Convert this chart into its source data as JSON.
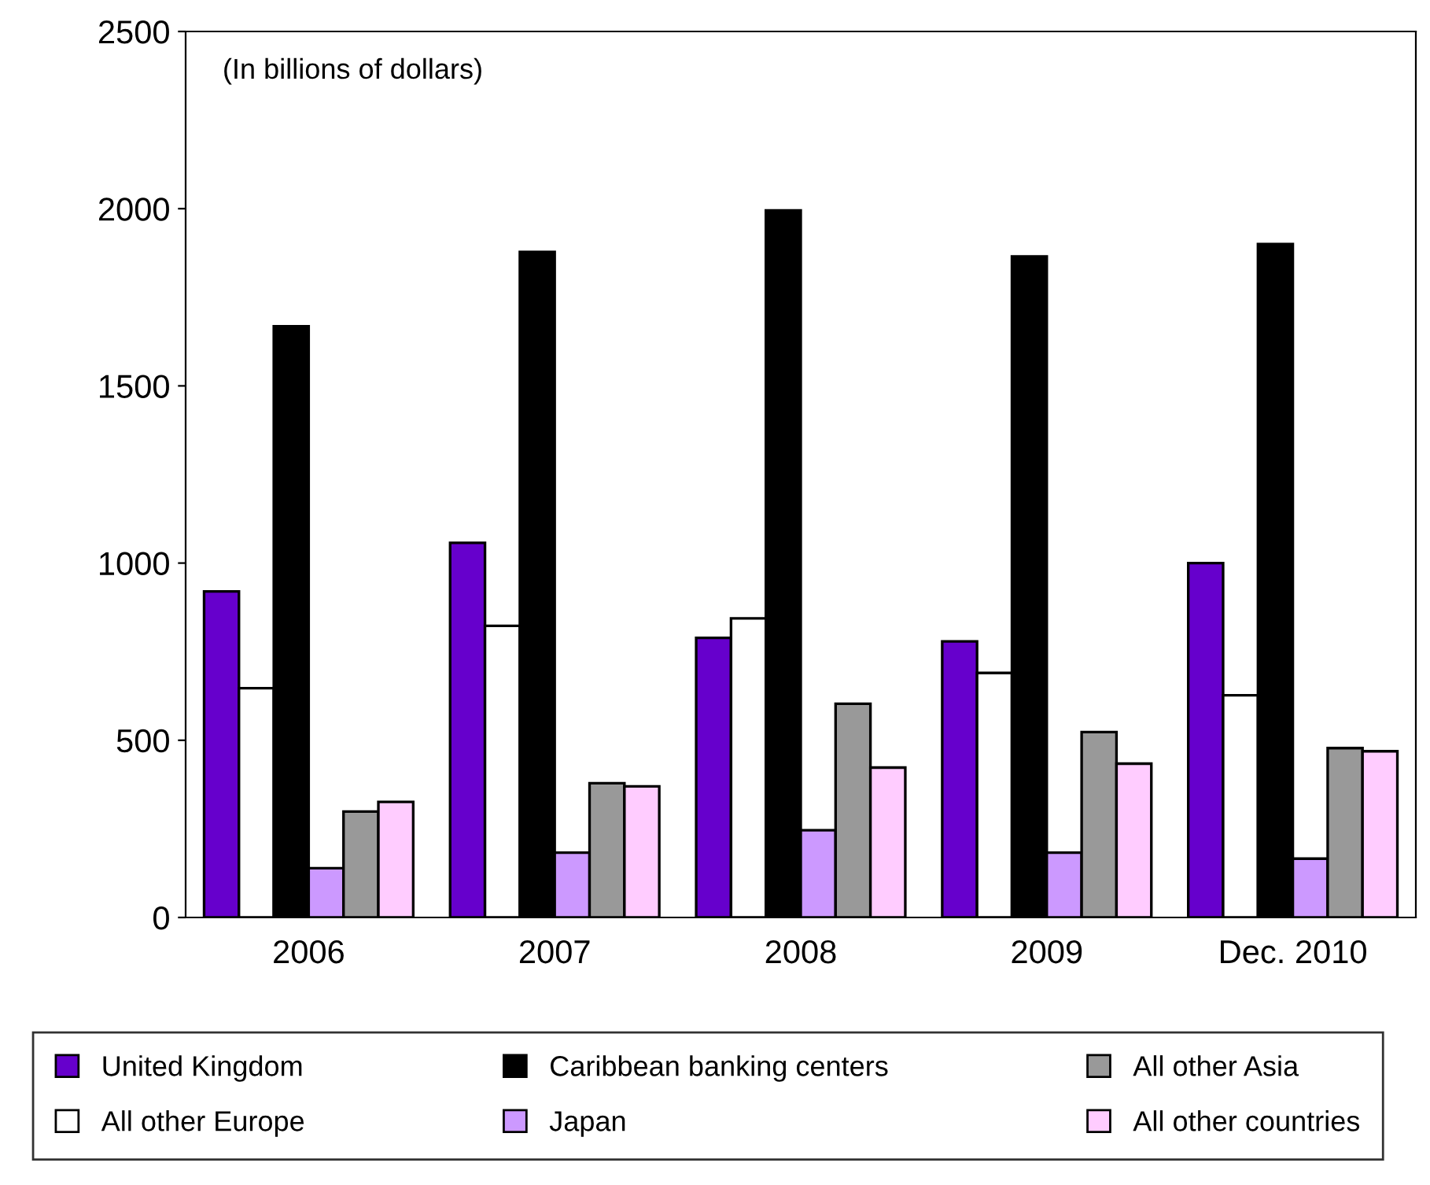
{
  "chart_data": {
    "type": "bar",
    "categories": [
      "2006",
      "2007",
      "2008",
      "2009",
      "Dec. 2010"
    ],
    "series": [
      {
        "name": "United Kingdom",
        "color": "#6600cc",
        "values": [
          920,
          1057,
          789,
          779,
          1000
        ]
      },
      {
        "name": "All other Europe",
        "color": "#ffffff",
        "values": [
          647,
          823,
          844,
          690,
          627
        ]
      },
      {
        "name": "Caribbean banking centers",
        "color": "#000000",
        "values": [
          1668,
          1878,
          1995,
          1865,
          1900
        ]
      },
      {
        "name": "Japan",
        "color": "#cc99ff",
        "values": [
          139,
          183,
          246,
          183,
          166
        ]
      },
      {
        "name": "All other Asia",
        "color": "#999999",
        "values": [
          299,
          379,
          603,
          523,
          478
        ]
      },
      {
        "name": "All other countries",
        "color": "#ffccff",
        "values": [
          326,
          370,
          423,
          434,
          469
        ]
      }
    ],
    "ylim": [
      0,
      2500
    ],
    "yticks": [
      0,
      500,
      1000,
      1500,
      2000,
      2500
    ],
    "grid": false,
    "legend": "bottom",
    "annotations": [
      "(In billions of dollars)"
    ]
  }
}
